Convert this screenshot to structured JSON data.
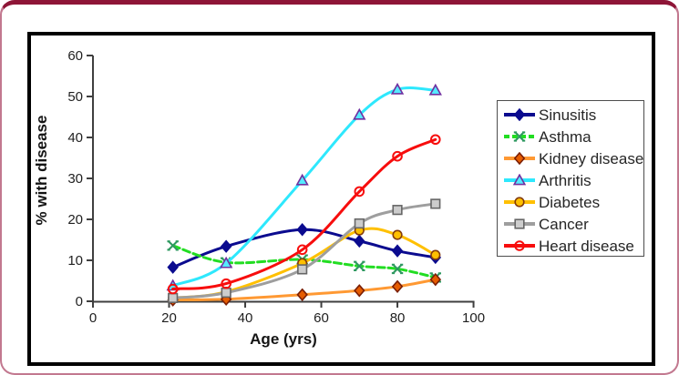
{
  "frame": {
    "outer_border_color": "#8e1537",
    "outer_side_color": "#c2788f",
    "panel_border_color": "#000000",
    "background": "#ffffff"
  },
  "chart_data": {
    "type": "line",
    "title": "",
    "xlabel": "Age (yrs)",
    "ylabel": "% with disease",
    "xlim": [
      0,
      100
    ],
    "ylim": [
      0,
      60
    ],
    "x_ticks": [
      0,
      20,
      40,
      60,
      80,
      100
    ],
    "y_ticks": [
      0,
      10,
      20,
      30,
      40,
      50,
      60
    ],
    "grid": false,
    "legend_position": "right",
    "axis_color": "#3f3f3f",
    "tick_label_color": "#1f1f1f",
    "smooth_lines": true,
    "x": [
      21,
      35,
      55,
      70,
      80,
      90
    ],
    "series": [
      {
        "name": "Sinusitis",
        "values": [
          8.3,
          13.4,
          17.5,
          14.7,
          12.3,
          10.7
        ],
        "line_color": "#0b0b8f",
        "line_style": "solid",
        "marker": "diamond",
        "marker_fill": "#0b0b8f",
        "marker_stroke": "#0b0b8f"
      },
      {
        "name": "Asthma",
        "values": [
          13.6,
          9.5,
          10.2,
          8.6,
          7.9,
          5.8
        ],
        "line_color": "#22dd22",
        "line_style": "dashed",
        "marker": "x",
        "marker_fill": "none",
        "marker_stroke": "#2e9960"
      },
      {
        "name": "Kidney disease",
        "values": [
          0.3,
          0.5,
          1.6,
          2.6,
          3.6,
          5.3
        ],
        "line_color": "#ff9933",
        "line_style": "solid",
        "marker": "diamond",
        "marker_fill": "#e65c00",
        "marker_stroke": "#7a1f05"
      },
      {
        "name": "Arthritis",
        "values": [
          3.8,
          9.3,
          29.5,
          45.5,
          51.7,
          51.5
        ],
        "line_color": "#2ee8fd",
        "line_style": "solid",
        "marker": "triangle",
        "marker_fill": "#55eaff",
        "marker_stroke": "#7030a0"
      },
      {
        "name": "Diabetes",
        "values": [
          0.8,
          2.3,
          9.3,
          17.3,
          16.2,
          11.3
        ],
        "line_color": "#ffc000",
        "line_style": "solid",
        "marker": "circle",
        "marker_fill": "#ffc000",
        "marker_stroke": "#843c0c"
      },
      {
        "name": "Cancer",
        "values": [
          0.8,
          2.1,
          7.8,
          19.0,
          22.3,
          23.8
        ],
        "line_color": "#9e9e9e",
        "line_style": "solid",
        "marker": "square",
        "marker_fill": "#cccccc",
        "marker_stroke": "#666666"
      },
      {
        "name": "Heart disease",
        "values": [
          3.0,
          4.3,
          12.6,
          26.8,
          35.4,
          39.5
        ],
        "line_color": "#f70d0d",
        "line_style": "solid",
        "marker": "circle-open",
        "marker_fill": "none",
        "marker_stroke": "#f70d0d"
      }
    ]
  }
}
